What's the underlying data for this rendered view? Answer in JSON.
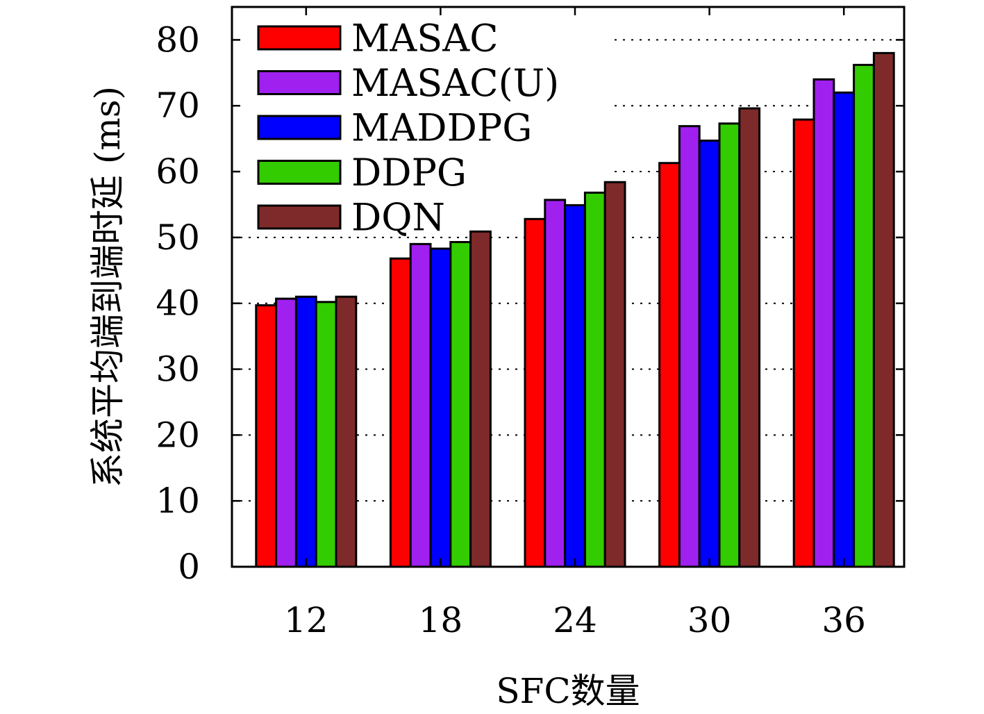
{
  "chart_data": {
    "type": "bar",
    "title": "",
    "xlabel": "SFC数量",
    "ylabel": "系统平均端到端时延 (ms)",
    "categories": [
      "12",
      "18",
      "24",
      "30",
      "36"
    ],
    "ylim": [
      0,
      85
    ],
    "yticks": [
      0,
      10,
      20,
      30,
      40,
      50,
      60,
      70,
      80
    ],
    "grid": true,
    "legend_position": "top-left",
    "series": [
      {
        "name": "MASAC",
        "color": "#ff0000",
        "values": [
          39.7,
          46.8,
          52.8,
          61.3,
          67.9
        ]
      },
      {
        "name": "MASAC(U)",
        "color": "#a020f0",
        "values": [
          40.7,
          49.0,
          55.7,
          66.9,
          74.0
        ]
      },
      {
        "name": "MADDPG",
        "color": "#0000ff",
        "values": [
          41.0,
          48.3,
          54.9,
          64.7,
          72.0
        ]
      },
      {
        "name": "DDPG",
        "color": "#33cc00",
        "values": [
          40.2,
          49.3,
          56.8,
          67.3,
          76.2
        ]
      },
      {
        "name": "DQN",
        "color": "#7f2a2a",
        "values": [
          41.0,
          50.9,
          58.4,
          69.6,
          78.0
        ]
      }
    ]
  }
}
